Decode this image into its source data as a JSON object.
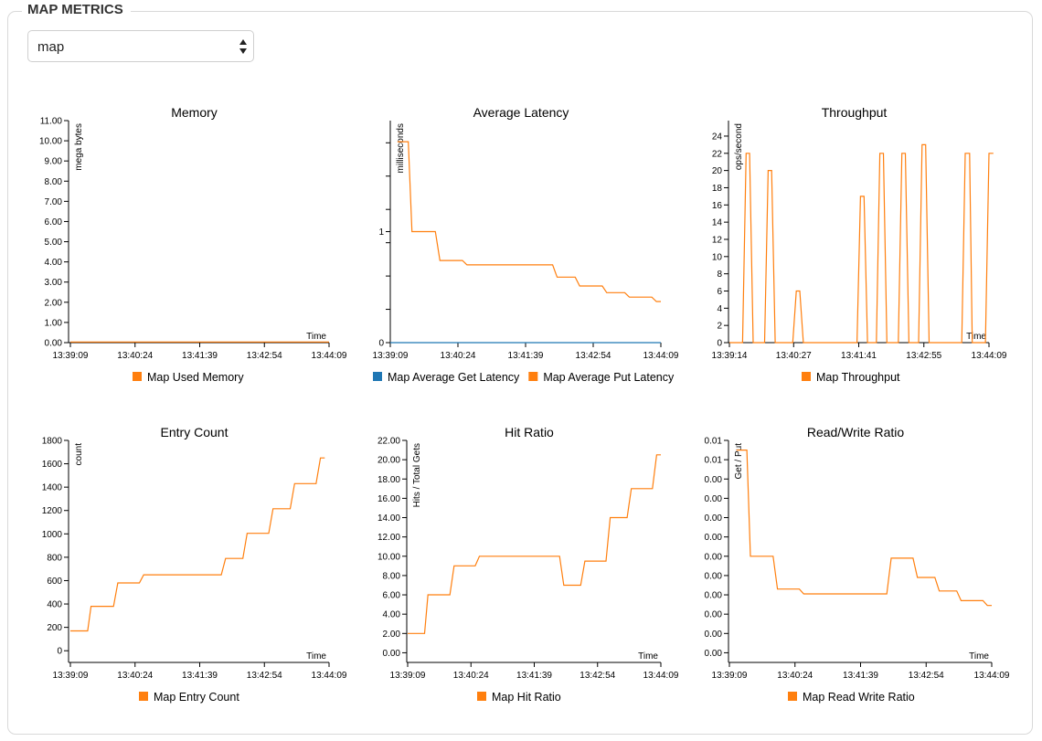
{
  "page": {
    "section_title": "MAP METRICS",
    "map_select": {
      "value": "map",
      "options": [
        "map"
      ]
    }
  },
  "colors": {
    "orange": "#ff7f0e",
    "blue": "#1f77b4",
    "axis": "#000000"
  },
  "chart_data": [
    {
      "id": "memory",
      "type": "line",
      "title": "Memory",
      "ylabel": "mega bytes",
      "xlabel": "Time",
      "ylim": [
        0,
        11
      ],
      "yticks": [
        0,
        1,
        2,
        3,
        4,
        5,
        6,
        7,
        8,
        9,
        10,
        11
      ],
      "ytick_labels": [
        "0.00",
        "1.00",
        "2.00",
        "3.00",
        "4.00",
        "5.00",
        "6.00",
        "7.00",
        "8.00",
        "9.00",
        "10.00",
        "11.00"
      ],
      "xlim": [
        0,
        300
      ],
      "xticks": [
        0,
        75,
        150,
        225,
        300
      ],
      "xtick_labels": [
        "13:39:09",
        "13:40:24",
        "13:41:39",
        "13:42:54",
        "13:44:09"
      ],
      "series": [
        {
          "name": "Map Used Memory",
          "color": "#ff7f0e",
          "step": true,
          "points": [
            [
              0,
              0.03
            ],
            [
              300,
              0.03
            ]
          ]
        }
      ]
    },
    {
      "id": "latency",
      "type": "line",
      "title": "Average Latency",
      "ylabel": "milliseconds",
      "xlabel": "",
      "ylim": [
        0,
        2
      ],
      "yticks": [
        0,
        0.3,
        0.6,
        0.9,
        1,
        1.2,
        1.5,
        1.8
      ],
      "ytick_labels": [
        "0",
        "",
        "",
        "",
        "1",
        "",
        "",
        ""
      ],
      "xlim": [
        0,
        300
      ],
      "xticks": [
        0,
        75,
        150,
        225,
        300
      ],
      "xtick_labels": [
        "13:39:09",
        "13:40:24",
        "13:41:39",
        "13:42:54",
        "13:44:09"
      ],
      "series": [
        {
          "name": "Map Average Get Latency",
          "color": "#1f77b4",
          "step": true,
          "points": [
            [
              0,
              0
            ],
            [
              300,
              0
            ]
          ]
        },
        {
          "name": "Map Average Put Latency",
          "color": "#ff7f0e",
          "step": true,
          "points": [
            [
              8,
              1.81
            ],
            [
              20,
              1.81
            ],
            [
              24,
              1.0
            ],
            [
              50,
              1.0
            ],
            [
              55,
              0.74
            ],
            [
              80,
              0.74
            ],
            [
              85,
              0.7
            ],
            [
              180,
              0.7
            ],
            [
              185,
              0.59
            ],
            [
              205,
              0.59
            ],
            [
              210,
              0.51
            ],
            [
              235,
              0.51
            ],
            [
              240,
              0.45
            ],
            [
              260,
              0.45
            ],
            [
              265,
              0.41
            ],
            [
              290,
              0.41
            ],
            [
              295,
              0.37
            ],
            [
              300,
              0.37
            ]
          ]
        }
      ]
    },
    {
      "id": "throughput",
      "type": "line",
      "title": "Throughput",
      "ylabel": "ops/second",
      "xlabel": "Time",
      "ylim": [
        0,
        25.8
      ],
      "yticks": [
        0,
        2,
        4,
        6,
        8,
        10,
        12,
        14,
        16,
        18,
        20,
        22,
        24
      ],
      "ytick_labels": [
        "0",
        "2",
        "4",
        "6",
        "8",
        "10",
        "12",
        "14",
        "16",
        "18",
        "20",
        "22",
        "24"
      ],
      "xlim": [
        0,
        295
      ],
      "xticks": [
        0,
        73,
        147,
        221,
        295
      ],
      "xtick_labels": [
        "13:39:14",
        "13:40:27",
        "13:41:41",
        "13:42:55",
        "13:44:09"
      ],
      "series": [
        {
          "name": "Map Throughput",
          "color": "#ff7f0e",
          "step": false,
          "points": [
            [
              0,
              0
            ],
            [
              15,
              0
            ],
            [
              19,
              22
            ],
            [
              23,
              22
            ],
            [
              27,
              0
            ],
            [
              40,
              0
            ],
            [
              44,
              20
            ],
            [
              48,
              20
            ],
            [
              52,
              0
            ],
            [
              72,
              0
            ],
            [
              76,
              6
            ],
            [
              80,
              6
            ],
            [
              84,
              0
            ],
            [
              145,
              0
            ],
            [
              149,
              17
            ],
            [
              153,
              17
            ],
            [
              157,
              0
            ],
            [
              167,
              0
            ],
            [
              171,
              22
            ],
            [
              175,
              22
            ],
            [
              179,
              0
            ],
            [
              192,
              0
            ],
            [
              196,
              22
            ],
            [
              200,
              22
            ],
            [
              204,
              0
            ],
            [
              215,
              0
            ],
            [
              219,
              23
            ],
            [
              223,
              23
            ],
            [
              227,
              0
            ],
            [
              264,
              0
            ],
            [
              268,
              22
            ],
            [
              273,
              22
            ],
            [
              276,
              0
            ],
            [
              291,
              0
            ],
            [
              295,
              22
            ],
            [
              300,
              22
            ]
          ]
        }
      ]
    },
    {
      "id": "entry_count",
      "type": "line",
      "title": "Entry Count",
      "ylabel": "count",
      "xlabel": "Time",
      "ylim": [
        -100,
        1800
      ],
      "yticks": [
        0,
        200,
        400,
        600,
        800,
        1000,
        1200,
        1400,
        1600,
        1800
      ],
      "ytick_labels": [
        "0",
        "200",
        "400",
        "600",
        "800",
        "1000",
        "1200",
        "1400",
        "1600",
        "1800"
      ],
      "xlim": [
        0,
        300
      ],
      "xticks": [
        0,
        75,
        150,
        225,
        300
      ],
      "xtick_labels": [
        "13:39:09",
        "13:40:24",
        "13:41:39",
        "13:42:54",
        "13:44:09"
      ],
      "series": [
        {
          "name": "Map Entry Count",
          "color": "#ff7f0e",
          "step": true,
          "points": [
            [
              0,
              170
            ],
            [
              20,
              170
            ],
            [
              24,
              380
            ],
            [
              50,
              380
            ],
            [
              55,
              580
            ],
            [
              80,
              580
            ],
            [
              85,
              650
            ],
            [
              175,
              650
            ],
            [
              180,
              790
            ],
            [
              200,
              790
            ],
            [
              205,
              1005
            ],
            [
              230,
              1005
            ],
            [
              235,
              1215
            ],
            [
              255,
              1215
            ],
            [
              260,
              1430
            ],
            [
              285,
              1430
            ],
            [
              290,
              1650
            ],
            [
              295,
              1650
            ]
          ]
        }
      ]
    },
    {
      "id": "hit_ratio",
      "type": "line",
      "title": "Hit Ratio",
      "ylabel": "Hits / Total Gets",
      "xlabel": "Time",
      "ylim": [
        -1,
        22
      ],
      "yticks": [
        0,
        2,
        4,
        6,
        8,
        10,
        12,
        14,
        16,
        18,
        20,
        22
      ],
      "ytick_labels": [
        "0.00",
        "2.00",
        "4.00",
        "6.00",
        "8.00",
        "10.00",
        "12.00",
        "14.00",
        "16.00",
        "18.00",
        "20.00",
        "22.00"
      ],
      "xlim": [
        0,
        300
      ],
      "xticks": [
        0,
        75,
        150,
        225,
        300
      ],
      "xtick_labels": [
        "13:39:09",
        "13:40:24",
        "13:41:39",
        "13:42:54",
        "13:44:09"
      ],
      "series": [
        {
          "name": "Map Hit Ratio",
          "color": "#ff7f0e",
          "step": true,
          "points": [
            [
              0,
              2
            ],
            [
              20,
              2
            ],
            [
              24,
              6
            ],
            [
              50,
              6
            ],
            [
              55,
              9
            ],
            [
              80,
              9
            ],
            [
              85,
              10
            ],
            [
              180,
              10
            ],
            [
              185,
              7
            ],
            [
              205,
              7
            ],
            [
              210,
              9.5
            ],
            [
              235,
              9.5
            ],
            [
              240,
              14
            ],
            [
              260,
              14
            ],
            [
              265,
              17
            ],
            [
              290,
              17
            ],
            [
              295,
              20.5
            ],
            [
              300,
              20.5
            ]
          ]
        }
      ]
    },
    {
      "id": "rw_ratio",
      "type": "line",
      "title": "Read/Write Ratio",
      "ylabel": "Get / Put",
      "xlabel": "Time",
      "ylim": [
        -0.5,
        11
      ],
      "yticks": [
        0,
        1,
        2,
        3,
        4,
        5,
        6,
        7,
        8,
        9,
        10,
        11
      ],
      "ytick_labels": [
        "0.00",
        "0.00",
        "0.00",
        "0.00",
        "0.00",
        "0.00",
        "0.00",
        "0.00",
        "0.00",
        "0.00",
        "0.01",
        "0.01"
      ],
      "xlim": [
        0,
        300
      ],
      "xticks": [
        0,
        75,
        150,
        225,
        300
      ],
      "xtick_labels": [
        "13:39:09",
        "13:40:24",
        "13:41:39",
        "13:42:54",
        "13:44:09"
      ],
      "series": [
        {
          "name": "Map Read Write Ratio",
          "color": "#ff7f0e",
          "step": false,
          "points": [
            [
              8,
              10.5
            ],
            [
              20,
              10.5
            ],
            [
              24,
              5
            ],
            [
              50,
              5
            ],
            [
              55,
              3.3
            ],
            [
              80,
              3.3
            ],
            [
              85,
              3.05
            ],
            [
              180,
              3.05
            ],
            [
              185,
              4.9
            ],
            [
              210,
              4.9
            ],
            [
              215,
              3.9
            ],
            [
              235,
              3.9
            ],
            [
              240,
              3.2
            ],
            [
              260,
              3.2
            ],
            [
              265,
              2.7
            ],
            [
              290,
              2.7
            ],
            [
              295,
              2.45
            ],
            [
              300,
              2.45
            ]
          ]
        }
      ]
    }
  ]
}
